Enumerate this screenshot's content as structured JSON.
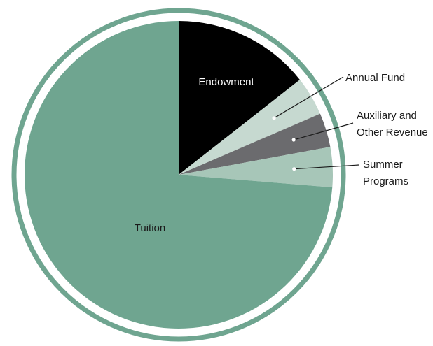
{
  "chart_data": {
    "type": "pie",
    "title": "",
    "slices": [
      {
        "label": "Endowment",
        "value": 14.4,
        "color": "#000000"
      },
      {
        "label": "Annual Fund",
        "value": 4.1,
        "color": "#c6d9d0"
      },
      {
        "label": "Auxiliary and Other Revenue",
        "value": 3.6,
        "color": "#6b6b6e"
      },
      {
        "label": "Summer Programs",
        "value": 4.2,
        "color": "#a7c6b8"
      },
      {
        "label": "Tuition",
        "value": 73.7,
        "color": "#6fa590"
      }
    ],
    "ring_color": "#6fa590",
    "labels": {
      "endowment": "Endowment",
      "annual_fund": "Annual Fund",
      "auxiliary_line1": "Auxiliary and",
      "auxiliary_line2": "Other Revenue",
      "summer_line1": "Summer",
      "summer_line2": "Programs",
      "tuition": "Tuition"
    }
  }
}
